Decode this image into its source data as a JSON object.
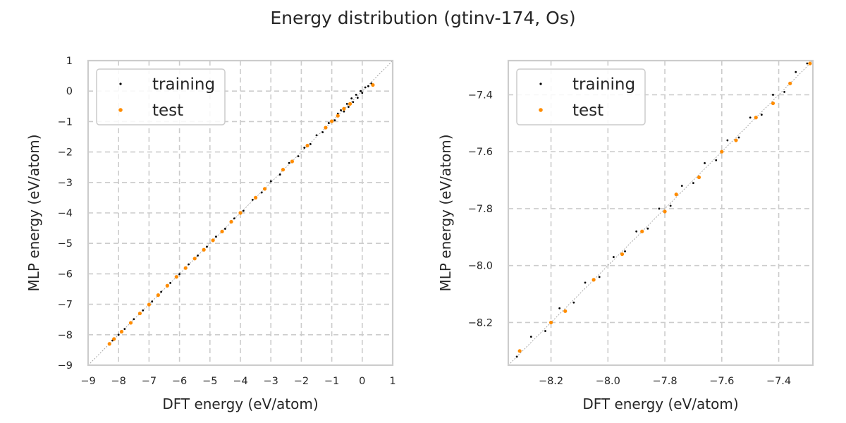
{
  "figure": {
    "title": "Energy distribution (gtinv-174, Os)"
  },
  "colors": {
    "training": "#000000",
    "test": "#ff8c00",
    "grid": "#cccccc",
    "frame": "#cccccc",
    "diagonal": "#a0a0a0"
  },
  "chart_data": [
    {
      "type": "scatter",
      "title": "",
      "xlabel": "DFT energy (eV/atom)",
      "ylabel": "MLP energy (eV/atom)",
      "xlim": [
        -9,
        1
      ],
      "ylim": [
        -9,
        1
      ],
      "xticks": [
        -9,
        -8,
        -7,
        -6,
        -5,
        -4,
        -3,
        -2,
        -1,
        0,
        1
      ],
      "yticks": [
        -9,
        -8,
        -7,
        -6,
        -5,
        -4,
        -3,
        -2,
        -1,
        0,
        1
      ],
      "xtick_labels": [
        "−9",
        "−8",
        "−7",
        "−6",
        "−5",
        "−4",
        "−3",
        "−2",
        "−1",
        "0",
        "1"
      ],
      "ytick_labels": [
        "−9",
        "−8",
        "−7",
        "−6",
        "−5",
        "−4",
        "−3",
        "−2",
        "−1",
        "0",
        "1"
      ],
      "grid": true,
      "legend_position": "top-left",
      "reference_line": "y = x (dotted)",
      "series": [
        {
          "name": "training",
          "color": "#000000",
          "marker_size": "small",
          "points": [
            [
              -8.3,
              -8.3
            ],
            [
              -8.2,
              -8.19
            ],
            [
              -8.0,
              -8.0
            ],
            [
              -7.8,
              -7.81
            ],
            [
              -7.5,
              -7.49
            ],
            [
              -7.2,
              -7.2
            ],
            [
              -6.9,
              -6.91
            ],
            [
              -6.6,
              -6.59
            ],
            [
              -6.3,
              -6.3
            ],
            [
              -6.0,
              -6.01
            ],
            [
              -5.7,
              -5.69
            ],
            [
              -5.4,
              -5.4
            ],
            [
              -5.1,
              -5.11
            ],
            [
              -4.8,
              -4.78
            ],
            [
              -4.5,
              -4.52
            ],
            [
              -4.2,
              -4.18
            ],
            [
              -3.9,
              -3.93
            ],
            [
              -3.6,
              -3.57
            ],
            [
              -3.3,
              -3.33
            ],
            [
              -3.0,
              -2.96
            ],
            [
              -2.7,
              -2.74
            ],
            [
              -2.4,
              -2.36
            ],
            [
              -2.1,
              -2.14
            ],
            [
              -1.9,
              -1.86
            ],
            [
              -1.7,
              -1.74
            ],
            [
              -1.5,
              -1.45
            ],
            [
              -1.3,
              -1.35
            ],
            [
              -1.1,
              -1.05
            ],
            [
              -0.9,
              -0.96
            ],
            [
              -0.8,
              -0.74
            ],
            [
              -0.7,
              -0.63
            ],
            [
              -0.6,
              -0.67
            ],
            [
              -0.5,
              -0.42
            ],
            [
              -0.45,
              -0.52
            ],
            [
              -0.35,
              -0.24
            ],
            [
              -0.3,
              -0.36
            ],
            [
              -0.2,
              -0.12
            ],
            [
              -0.15,
              -0.22
            ],
            [
              -0.05,
              0.0
            ],
            [
              0.0,
              -0.06
            ],
            [
              0.1,
              0.12
            ],
            [
              0.2,
              0.16
            ],
            [
              0.3,
              0.25
            ]
          ]
        },
        {
          "name": "test",
          "color": "#ff8c00",
          "marker_size": "medium",
          "points": [
            [
              -8.3,
              -8.3
            ],
            [
              -8.15,
              -8.14
            ],
            [
              -7.9,
              -7.9
            ],
            [
              -7.6,
              -7.61
            ],
            [
              -7.3,
              -7.3
            ],
            [
              -7.0,
              -7.01
            ],
            [
              -6.7,
              -6.7
            ],
            [
              -6.4,
              -6.39
            ],
            [
              -6.1,
              -6.1
            ],
            [
              -5.8,
              -5.81
            ],
            [
              -5.5,
              -5.5
            ],
            [
              -5.2,
              -5.21
            ],
            [
              -4.9,
              -4.9
            ],
            [
              -4.6,
              -4.61
            ],
            [
              -4.3,
              -4.29
            ],
            [
              -4.0,
              -4.0
            ],
            [
              -3.5,
              -3.5
            ],
            [
              -3.2,
              -3.21
            ],
            [
              -2.6,
              -2.58
            ],
            [
              -2.3,
              -2.31
            ],
            [
              -1.8,
              -1.79
            ],
            [
              -1.2,
              -1.2
            ],
            [
              -1.0,
              -0.99
            ],
            [
              -0.8,
              -0.81
            ],
            [
              -0.6,
              -0.58
            ],
            [
              -0.4,
              -0.42
            ],
            [
              0.35,
              0.2
            ]
          ]
        }
      ]
    },
    {
      "type": "scatter",
      "title": "",
      "xlabel": "DFT energy (eV/atom)",
      "ylabel": "MLP energy (eV/atom)",
      "xlim": [
        -8.35,
        -7.28
      ],
      "ylim": [
        -8.35,
        -7.28
      ],
      "xticks": [
        -8.2,
        -8.0,
        -7.8,
        -7.6,
        -7.4
      ],
      "yticks": [
        -8.2,
        -8.0,
        -7.8,
        -7.6,
        -7.4
      ],
      "xtick_labels": [
        "−8.2",
        "−8.0",
        "−7.8",
        "−7.6",
        "−7.4"
      ],
      "ytick_labels": [
        "−8.2",
        "−8.0",
        "−7.8",
        "−7.6",
        "−7.4"
      ],
      "grid": true,
      "legend_position": "top-left",
      "reference_line": "y = x (dotted)",
      "series": [
        {
          "name": "training",
          "color": "#000000",
          "marker_size": "small",
          "points": [
            [
              -8.32,
              -8.32
            ],
            [
              -8.27,
              -8.25
            ],
            [
              -8.22,
              -8.23
            ],
            [
              -8.17,
              -8.15
            ],
            [
              -8.12,
              -8.13
            ],
            [
              -8.08,
              -8.06
            ],
            [
              -8.03,
              -8.04
            ],
            [
              -7.98,
              -7.97
            ],
            [
              -7.94,
              -7.95
            ],
            [
              -7.9,
              -7.88
            ],
            [
              -7.86,
              -7.87
            ],
            [
              -7.82,
              -7.8
            ],
            [
              -7.78,
              -7.79
            ],
            [
              -7.74,
              -7.72
            ],
            [
              -7.7,
              -7.71
            ],
            [
              -7.66,
              -7.64
            ],
            [
              -7.62,
              -7.63
            ],
            [
              -7.58,
              -7.56
            ],
            [
              -7.54,
              -7.55
            ],
            [
              -7.5,
              -7.48
            ],
            [
              -7.46,
              -7.47
            ],
            [
              -7.42,
              -7.4
            ],
            [
              -7.38,
              -7.39
            ],
            [
              -7.34,
              -7.32
            ],
            [
              -7.3,
              -7.29
            ]
          ]
        },
        {
          "name": "test",
          "color": "#ff8c00",
          "marker_size": "medium",
          "points": [
            [
              -8.31,
              -8.3
            ],
            [
              -8.2,
              -8.2
            ],
            [
              -8.15,
              -8.16
            ],
            [
              -8.05,
              -8.05
            ],
            [
              -7.95,
              -7.96
            ],
            [
              -7.88,
              -7.88
            ],
            [
              -7.8,
              -7.81
            ],
            [
              -7.76,
              -7.75
            ],
            [
              -7.68,
              -7.69
            ],
            [
              -7.6,
              -7.6
            ],
            [
              -7.55,
              -7.56
            ],
            [
              -7.48,
              -7.48
            ],
            [
              -7.42,
              -7.43
            ],
            [
              -7.36,
              -7.36
            ],
            [
              -7.29,
              -7.29
            ]
          ]
        }
      ]
    }
  ]
}
